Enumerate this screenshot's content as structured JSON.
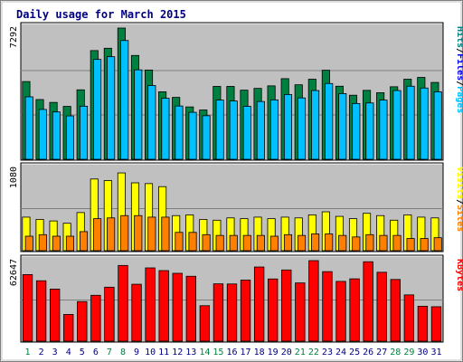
{
  "chart_data": {
    "type": "bar",
    "title": "Daily usage for March 2015",
    "days": [
      "1",
      "2",
      "3",
      "4",
      "5",
      "6",
      "7",
      "8",
      "9",
      "10",
      "11",
      "12",
      "13",
      "14",
      "15",
      "16",
      "17",
      "18",
      "19",
      "20",
      "21",
      "22",
      "23",
      "24",
      "25",
      "26",
      "27",
      "28",
      "29",
      "30",
      "31"
    ],
    "weekend_days": [
      "1",
      "7",
      "8",
      "14",
      "15",
      "21",
      "22",
      "28",
      "29"
    ],
    "colors": {
      "hits": "#008040",
      "files": "#00C0FF",
      "visits": "#FFFF00",
      "sites": "#FF8000",
      "kbytes": "#FF0000",
      "weekday_label": "#000080",
      "weekend_label": "#008040",
      "panel_bg": "#C0C0C0",
      "border": "#C0C0C0"
    },
    "panels": [
      {
        "id": "hits-files",
        "max_label": "7292",
        "ylim": [
          0,
          7292
        ],
        "legend": [
          {
            "text": "Hits",
            "color": "#008080"
          },
          {
            "text": "/",
            "color": "#000000"
          },
          {
            "text": "Files",
            "color": "#0000FF"
          },
          {
            "text": "/",
            "color": "#000000"
          },
          {
            "text": "Pages",
            "color": "#00C0FF"
          }
        ],
        "series": [
          {
            "name": "Hits",
            "color": "#008040",
            "values": [
              4320,
              3320,
              3160,
              2940,
              3860,
              6040,
              6170,
              7292,
              5770,
              4960,
              3750,
              3440,
              2910,
              2740,
              4050,
              4050,
              3840,
              3940,
              4080,
              4480,
              4140,
              4450,
              4950,
              4060,
              3560,
              3830,
              3700,
              4030,
              4450,
              4550,
              4270
            ]
          },
          {
            "name": "Files",
            "color": "#00C0FF",
            "values": [
              3470,
              2770,
              2630,
              2410,
              2950,
              5550,
              5700,
              6600,
              4970,
              4100,
              3390,
              2960,
              2610,
              2420,
              3290,
              3240,
              2940,
              3210,
              3300,
              3600,
              3410,
              3820,
              4210,
              3650,
              3100,
              3130,
              3290,
              3820,
              4060,
              3960,
              3750
            ]
          }
        ]
      },
      {
        "id": "visits-sites",
        "max_label": "1080",
        "ylim": [
          0,
          1080
        ],
        "legend": [
          {
            "text": "Visits",
            "color": "#FFFF00"
          },
          {
            "text": "/",
            "color": "#000000"
          },
          {
            "text": "Sites",
            "color": "#FF8000"
          }
        ],
        "series": [
          {
            "name": "Visits",
            "color": "#FFFF00",
            "values": [
              440,
              410,
              390,
              360,
              500,
              940,
              920,
              1020,
              890,
              880,
              840,
              460,
              470,
              410,
              400,
              430,
              420,
              440,
              420,
              440,
              430,
              470,
              510,
              450,
              420,
              490,
              460,
              400,
              470,
              440,
              430
            ]
          },
          {
            "name": "Sites",
            "color": "#FF8000",
            "values": [
              190,
              210,
              190,
              190,
              250,
              420,
              430,
              460,
              460,
              440,
              440,
              240,
              240,
              210,
              200,
              200,
              200,
              200,
              190,
              210,
              200,
              220,
              220,
              200,
              180,
              210,
              200,
              200,
              160,
              160,
              170
            ]
          }
        ]
      },
      {
        "id": "kbytes",
        "max_label": "62647",
        "ylim": [
          0,
          62647
        ],
        "legend": [
          {
            "text": "KBytes",
            "color": "#FF0000"
          }
        ],
        "series": [
          {
            "name": "KBytes",
            "color": "#FF0000",
            "values": [
              51800,
              47000,
              40500,
              20800,
              30800,
              35700,
              42000,
              58900,
              44300,
              57000,
              54900,
              52800,
              50500,
              27600,
              44600,
              44500,
              47500,
              57700,
              48400,
              55400,
              45300,
              62647,
              54100,
              46500,
              48500,
              61800,
              53600,
              48000,
              36000,
              27200,
              26800
            ]
          }
        ]
      }
    ]
  }
}
